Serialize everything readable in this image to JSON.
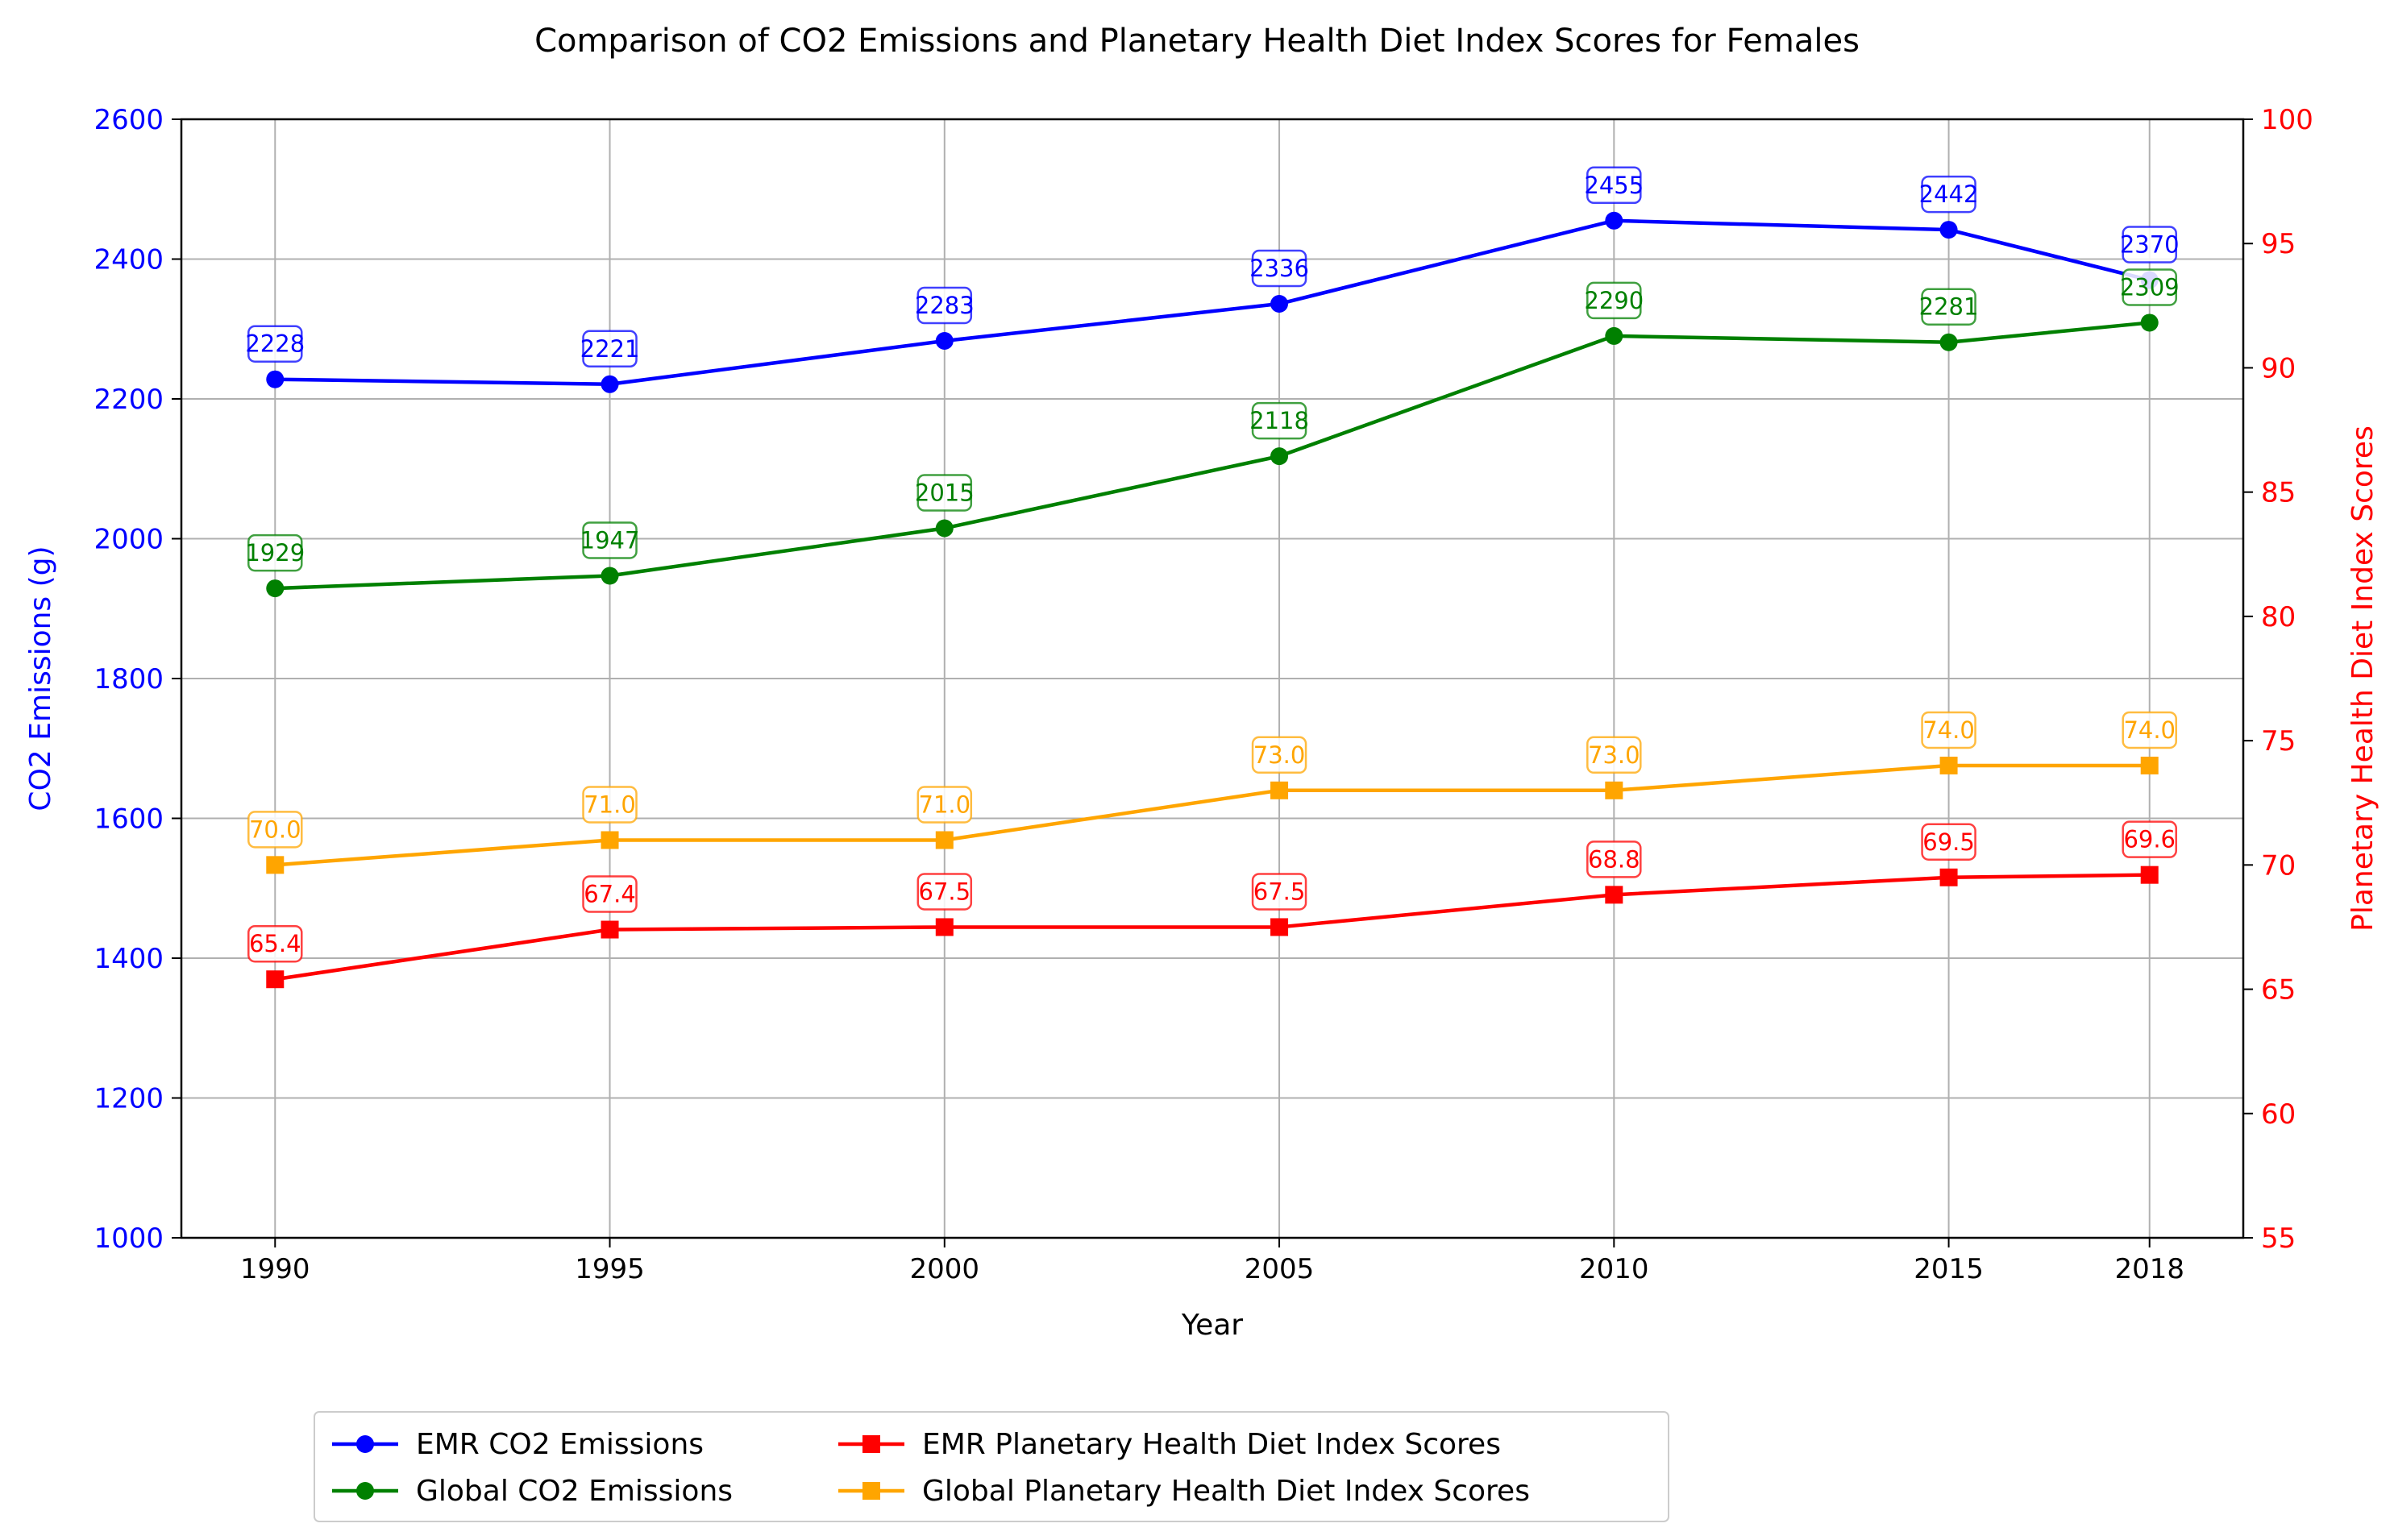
{
  "chart_data": {
    "type": "line",
    "title": "Comparison of CO2 Emissions and Planetary Health Diet Index Scores for Females",
    "xlabel": "Year",
    "ylabel_left": "CO2 Emissions (g)",
    "ylabel_right": "Planetary Health Diet Index Scores",
    "x": [
      1990,
      1995,
      2000,
      2005,
      2010,
      2015,
      2018
    ],
    "x_tick_labels": [
      "1990",
      "1995",
      "2000",
      "2005",
      "2010",
      "2015",
      "2018"
    ],
    "ylim_left": [
      1000,
      2600
    ],
    "y_ticks_left": [
      "1000",
      "1200",
      "1400",
      "1600",
      "1800",
      "2000",
      "2200",
      "2400",
      "2600"
    ],
    "ylim_right": [
      55,
      100
    ],
    "y_ticks_right": [
      "55",
      "60",
      "65",
      "70",
      "75",
      "80",
      "85",
      "90",
      "95",
      "100"
    ],
    "grid": true,
    "legend_position": "bottom-center",
    "left_axis_color": "#0000ff",
    "right_axis_color": "#ff0000",
    "series": [
      {
        "name": "EMR CO2 Emissions",
        "axis": "left",
        "marker": "circle",
        "color": "#0000ff",
        "values": [
          2228,
          2221,
          2283,
          2336,
          2455,
          2442,
          2370
        ],
        "labels": [
          "2228",
          "2221",
          "2283",
          "2336",
          "2455",
          "2442",
          "2370"
        ]
      },
      {
        "name": "Global CO2 Emissions",
        "axis": "left",
        "marker": "circle",
        "color": "#008000",
        "values": [
          1929,
          1947,
          2015,
          2118,
          2290,
          2281,
          2309
        ],
        "labels": [
          "1929",
          "1947",
          "2015",
          "2118",
          "2290",
          "2281",
          "2309"
        ]
      },
      {
        "name": "EMR Planetary Health Diet Index Scores",
        "axis": "right",
        "marker": "square",
        "color": "#ff0000",
        "values": [
          65.4,
          67.4,
          67.5,
          67.5,
          68.8,
          69.5,
          69.6
        ],
        "labels": [
          "65.4",
          "67.4",
          "67.5",
          "67.5",
          "68.8",
          "69.5",
          "69.6"
        ]
      },
      {
        "name": "Global Planetary Health Diet Index Scores",
        "axis": "right",
        "marker": "square",
        "color": "#ffa500",
        "values": [
          70.0,
          71.0,
          71.0,
          73.0,
          73.0,
          74.0,
          74.0
        ],
        "labels": [
          "70.0",
          "71.0",
          "71.0",
          "73.0",
          "73.0",
          "74.0",
          "74.0"
        ]
      }
    ]
  }
}
